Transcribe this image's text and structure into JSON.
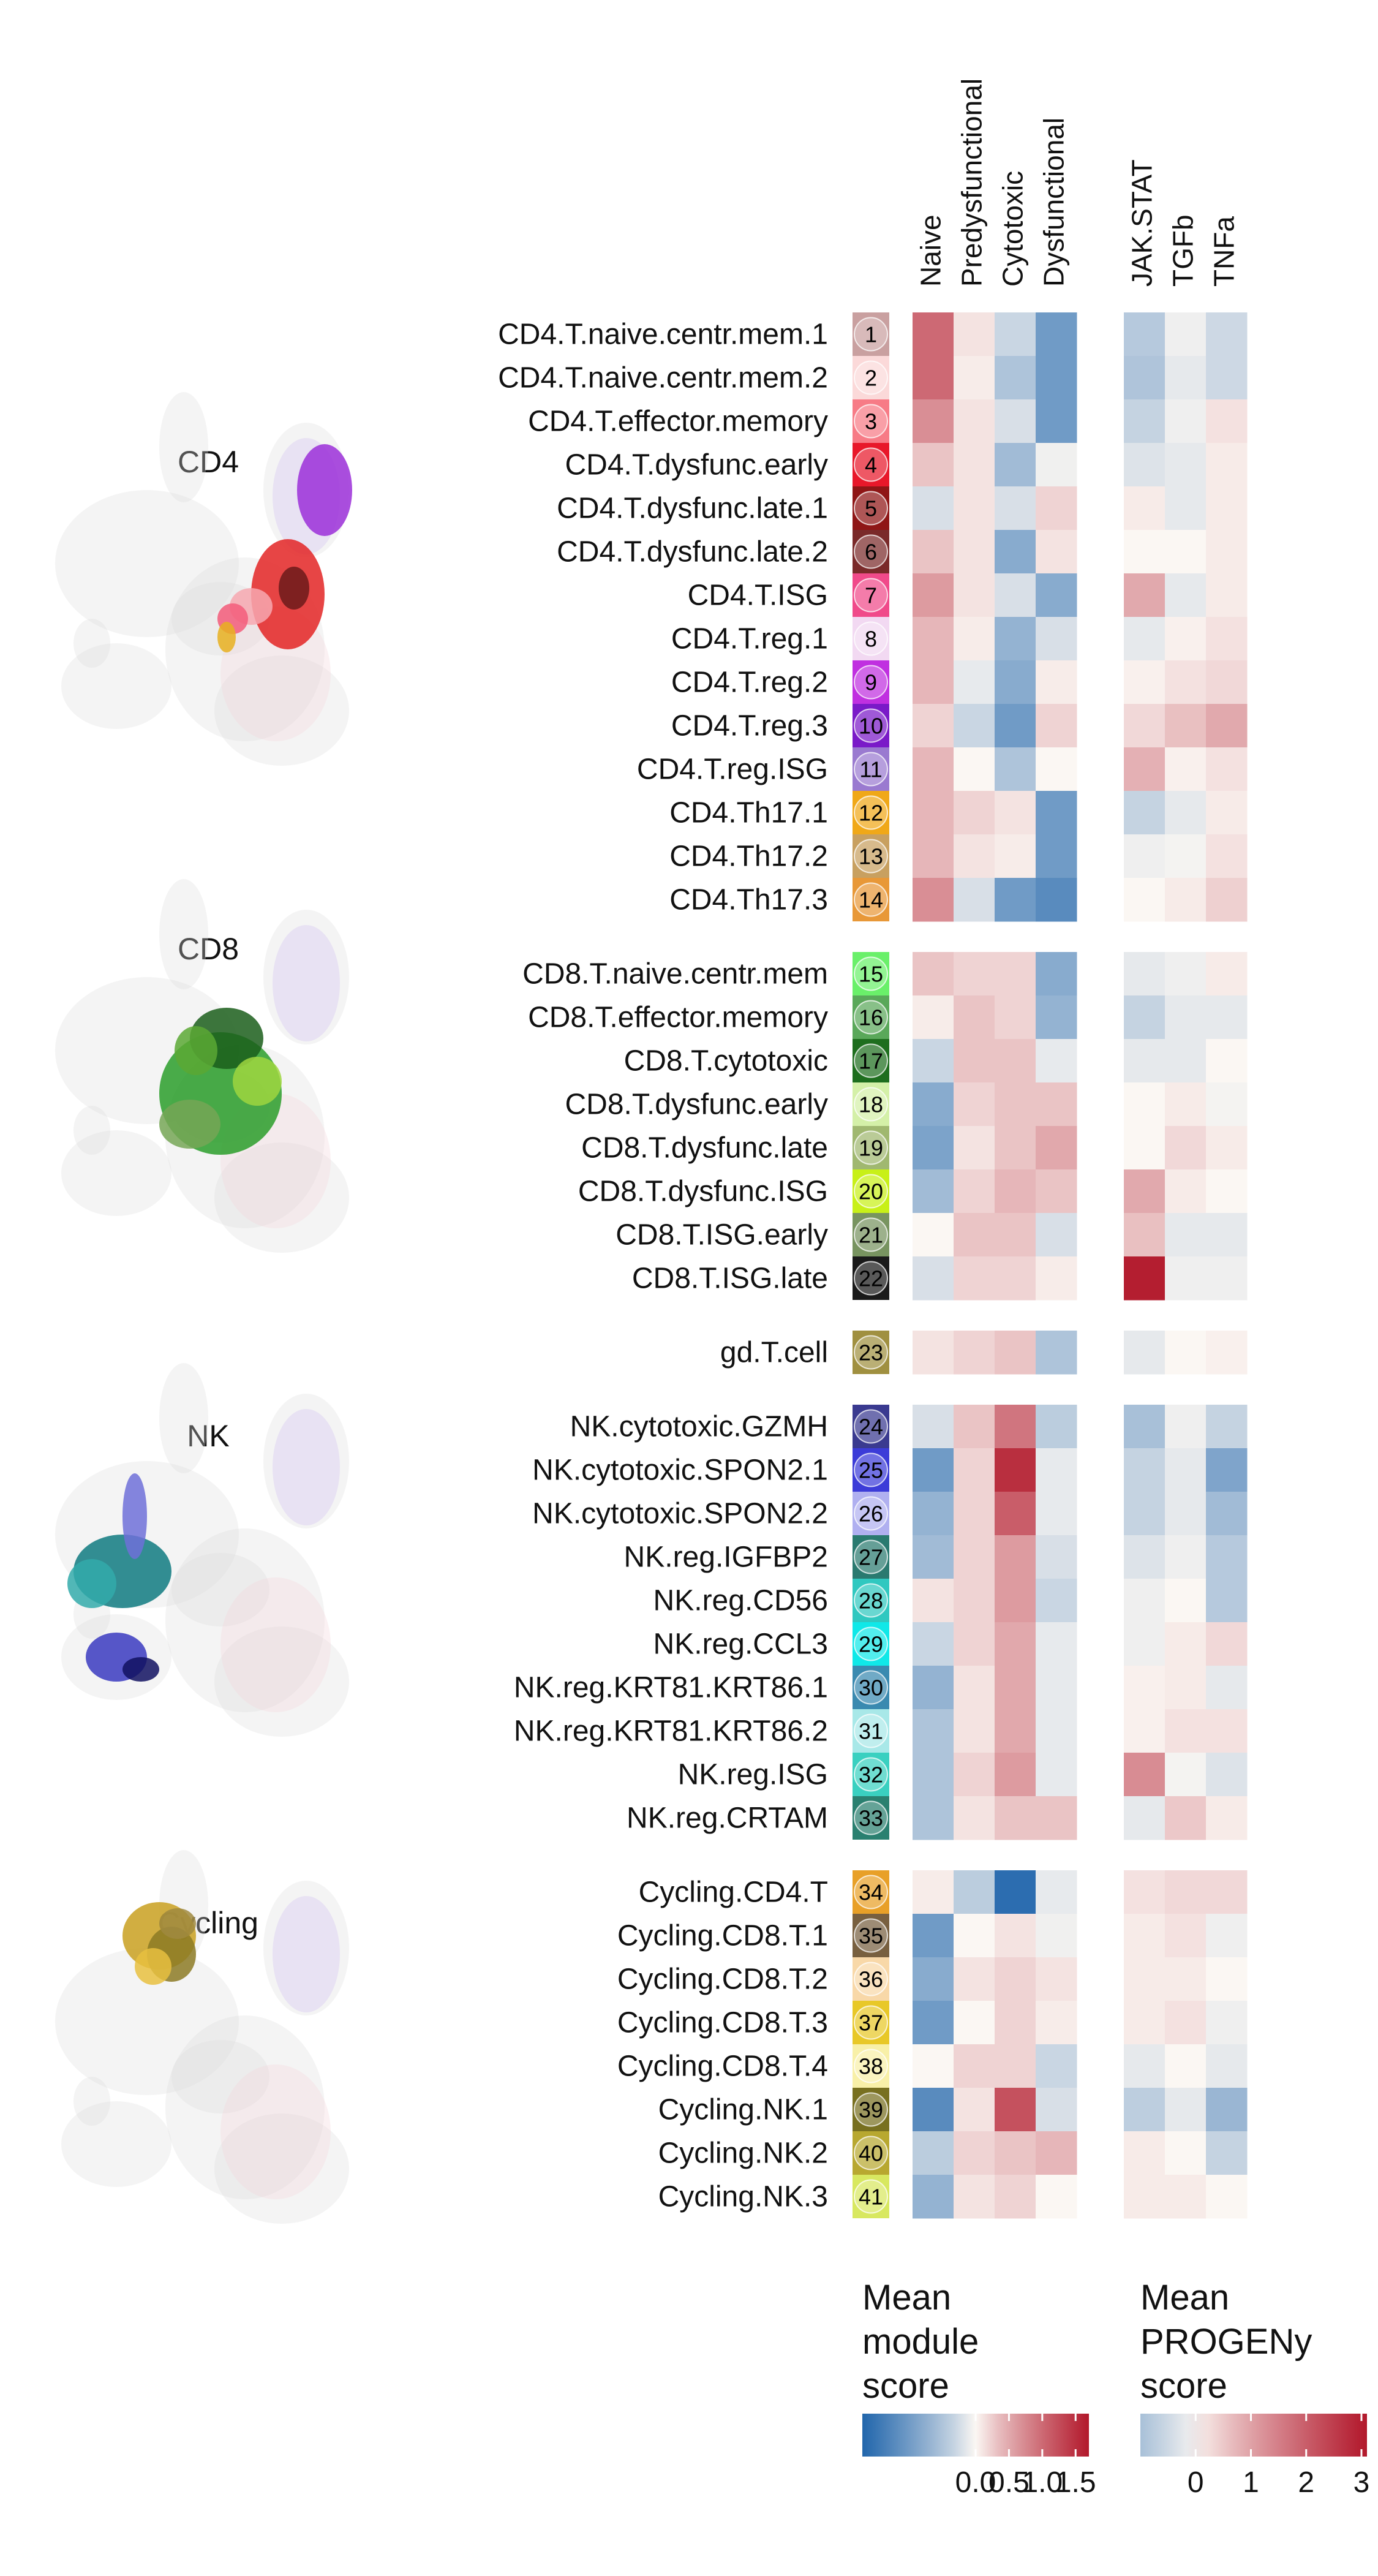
{
  "chart_data": {
    "type": "heatmap",
    "umap_panels": [
      {
        "label": "CD4",
        "colors": [
          "#9b2fd8",
          "#e32424",
          "#6b1a1a",
          "#f7a8b0",
          "#f35c7a",
          "#e8b020"
        ]
      },
      {
        "label": "CD8",
        "colors": [
          "#2a9e2a",
          "#1b5e1b",
          "#5aa834",
          "#9fd640",
          "#76a656"
        ]
      },
      {
        "label": "NK",
        "colors": [
          "#0f7a80",
          "#3a3ac0",
          "#101060",
          "#33aaaa",
          "#6f70d8"
        ]
      },
      {
        "label": "Cycling",
        "colors": [
          "#c9a020",
          "#8c7a24",
          "#e8c040",
          "#a08a40"
        ]
      }
    ],
    "module_columns": [
      "Naive",
      "Predysfunctional",
      "Cytotoxic",
      "Dysfunctional"
    ],
    "progeny_columns": [
      "JAK.STAT",
      "TGFb",
      "TNFa"
    ],
    "groups": [
      {
        "name": "CD4",
        "rows": [
          {
            "num": "1",
            "label": "CD4.T.naive.centr.mem.1",
            "color": "#c9a0a0",
            "module": [
              1.0,
              0.1,
              -0.3,
              -1.0
            ],
            "progeny": [
              -0.8,
              -0.1,
              -0.5
            ]
          },
          {
            "num": "2",
            "label": "CD4.T.naive.centr.mem.2",
            "color": "#fbd9d9",
            "module": [
              1.0,
              0.05,
              -0.5,
              -1.0
            ],
            "progeny": [
              -0.9,
              -0.2,
              -0.5
            ]
          },
          {
            "num": "3",
            "label": "CD4.T.effector.memory",
            "color": "#f77b86",
            "module": [
              0.7,
              0.1,
              -0.2,
              -1.0
            ],
            "progeny": [
              -0.6,
              -0.1,
              0.2
            ]
          },
          {
            "num": "4",
            "label": "CD4.T.dysfunc.early",
            "color": "#e8182a",
            "module": [
              0.3,
              0.1,
              -0.6,
              -0.05
            ],
            "progeny": [
              -0.3,
              -0.2,
              0.1
            ]
          },
          {
            "num": "5",
            "label": "CD4.T.dysfunc.late.1",
            "color": "#8f1616",
            "module": [
              -0.2,
              0.1,
              -0.2,
              0.2
            ],
            "progeny": [
              0.1,
              -0.2,
              0.1
            ]
          },
          {
            "num": "6",
            "label": "CD4.T.dysfunc.late.2",
            "color": "#7a2a2a",
            "module": [
              0.3,
              0.1,
              -0.8,
              0.1
            ],
            "progeny": [
              0.0,
              0.0,
              0.1
            ]
          },
          {
            "num": "7",
            "label": "CD4.T.ISG",
            "color": "#f04a8a",
            "module": [
              0.6,
              0.1,
              -0.2,
              -0.8
            ],
            "progeny": [
              0.9,
              -0.2,
              0.1
            ]
          },
          {
            "num": "8",
            "label": "CD4.T.reg.1",
            "color": "#f2d9f2",
            "module": [
              0.4,
              0.05,
              -0.7,
              -0.2
            ],
            "progeny": [
              -0.2,
              0.05,
              0.2
            ]
          },
          {
            "num": "9",
            "label": "CD4.T.reg.2",
            "color": "#c030e0",
            "module": [
              0.4,
              -0.1,
              -0.8,
              0.05
            ],
            "progeny": [
              0.05,
              0.2,
              0.3
            ]
          },
          {
            "num": "10",
            "label": "CD4.T.reg.3",
            "color": "#7a1ac8",
            "module": [
              0.2,
              -0.3,
              -1.0,
              0.2
            ],
            "progeny": [
              0.3,
              0.6,
              0.9
            ]
          },
          {
            "num": "11",
            "label": "CD4.T.reg.ISG",
            "color": "#9a7ad0",
            "module": [
              0.4,
              0.0,
              -0.5,
              0.0
            ],
            "progeny": [
              0.8,
              0.05,
              0.2
            ]
          },
          {
            "num": "12",
            "label": "CD4.Th17.1",
            "color": "#f0a818",
            "module": [
              0.4,
              0.2,
              0.1,
              -1.0
            ],
            "progeny": [
              -0.6,
              -0.2,
              0.1
            ]
          },
          {
            "num": "13",
            "label": "CD4.Th17.2",
            "color": "#c8a060",
            "module": [
              0.4,
              0.1,
              0.05,
              -1.0
            ],
            "progeny": [
              -0.1,
              -0.05,
              0.2
            ]
          },
          {
            "num": "14",
            "label": "CD4.Th17.3",
            "color": "#e89838",
            "module": [
              0.7,
              -0.2,
              -1.0,
              -1.2
            ],
            "progeny": [
              0.0,
              0.1,
              0.4
            ]
          }
        ]
      },
      {
        "name": "CD8",
        "rows": [
          {
            "num": "15",
            "label": "CD8.T.naive.centr.mem",
            "color": "#6af06a",
            "module": [
              0.3,
              0.2,
              0.2,
              -0.8
            ],
            "progeny": [
              -0.2,
              -0.1,
              0.1
            ]
          },
          {
            "num": "16",
            "label": "CD8.T.effector.memory",
            "color": "#5aa85a",
            "module": [
              0.05,
              0.3,
              0.2,
              -0.7
            ],
            "progeny": [
              -0.6,
              -0.2,
              -0.2
            ]
          },
          {
            "num": "17",
            "label": "CD8.T.cytotoxic",
            "color": "#1e6e1e",
            "module": [
              -0.3,
              0.3,
              0.3,
              -0.1
            ],
            "progeny": [
              -0.2,
              -0.2,
              0.0
            ]
          },
          {
            "num": "18",
            "label": "CD8.T.dysfunc.early",
            "color": "#d4f0a8",
            "module": [
              -0.8,
              0.2,
              0.3,
              0.3
            ],
            "progeny": [
              0.0,
              0.1,
              -0.05
            ]
          },
          {
            "num": "19",
            "label": "CD8.T.dysfunc.late",
            "color": "#a0b870",
            "module": [
              -0.9,
              0.1,
              0.3,
              0.5
            ],
            "progeny": [
              0.0,
              0.3,
              0.1
            ]
          },
          {
            "num": "20",
            "label": "CD8.T.dysfunc.ISG",
            "color": "#c8f018",
            "module": [
              -0.6,
              0.2,
              0.4,
              0.3
            ],
            "progeny": [
              0.9,
              0.1,
              0.0
            ]
          },
          {
            "num": "21",
            "label": "CD8.T.ISG.early",
            "color": "#789460",
            "module": [
              0.0,
              0.3,
              0.3,
              -0.2
            ],
            "progeny": [
              0.6,
              -0.2,
              -0.2
            ]
          },
          {
            "num": "22",
            "label": "CD8.T.ISG.late",
            "color": "#1a1a1a",
            "module": [
              -0.2,
              0.2,
              0.2,
              0.05
            ],
            "progeny": [
              3.0,
              -0.1,
              -0.1
            ]
          }
        ]
      },
      {
        "name": "gd",
        "rows": [
          {
            "num": "23",
            "label": "gd.T.cell",
            "color": "#a09040",
            "module": [
              0.1,
              0.2,
              0.3,
              -0.5
            ],
            "progeny": [
              -0.2,
              0.0,
              0.05
            ]
          }
        ]
      },
      {
        "name": "NK",
        "rows": [
          {
            "num": "24",
            "label": "NK.cytotoxic.GZMH",
            "color": "#3a3a90",
            "module": [
              -0.2,
              0.3,
              0.9,
              -0.4
            ],
            "progeny": [
              -1.0,
              -0.1,
              -0.6
            ]
          },
          {
            "num": "25",
            "label": "NK.cytotoxic.SPON2.1",
            "color": "#3c3cd8",
            "module": [
              -1.0,
              0.2,
              1.5,
              -0.1
            ],
            "progeny": [
              -0.6,
              -0.2,
              -1.6
            ]
          },
          {
            "num": "26",
            "label": "NK.cytotoxic.SPON2.2",
            "color": "#b0b0f0",
            "module": [
              -0.7,
              0.2,
              1.1,
              -0.1
            ],
            "progeny": [
              -0.6,
              -0.2,
              -1.1
            ]
          },
          {
            "num": "27",
            "label": "NK.reg.IGFBP2",
            "color": "#2a7a70",
            "module": [
              -0.6,
              0.2,
              0.6,
              -0.2
            ],
            "progeny": [
              -0.3,
              -0.1,
              -0.8
            ]
          },
          {
            "num": "28",
            "label": "NK.reg.CD56",
            "color": "#30c8c0",
            "module": [
              0.1,
              0.2,
              0.6,
              -0.3
            ],
            "progeny": [
              -0.1,
              0.0,
              -0.8
            ]
          },
          {
            "num": "29",
            "label": "NK.reg.CCL3",
            "color": "#10e8e8",
            "module": [
              -0.3,
              0.2,
              0.5,
              -0.1
            ],
            "progeny": [
              -0.1,
              0.1,
              0.3
            ]
          },
          {
            "num": "30",
            "label": "NK.reg.KRT81.KRT86.1",
            "color": "#3a8ab0",
            "module": [
              -0.7,
              0.1,
              0.5,
              -0.1
            ],
            "progeny": [
              0.05,
              0.1,
              -0.2
            ]
          },
          {
            "num": "31",
            "label": "NK.reg.KRT81.KRT86.2",
            "color": "#a8e8e8",
            "module": [
              -0.5,
              0.1,
              0.5,
              -0.1
            ],
            "progeny": [
              0.05,
              0.2,
              0.2
            ]
          },
          {
            "num": "32",
            "label": "NK.reg.ISG",
            "color": "#3ad0c0",
            "module": [
              -0.5,
              0.2,
              0.6,
              -0.1
            ],
            "progeny": [
              1.3,
              -0.05,
              -0.3
            ]
          },
          {
            "num": "33",
            "label": "NK.reg.CRTAM",
            "color": "#2a8070",
            "module": [
              -0.5,
              0.1,
              0.3,
              0.3
            ],
            "progeny": [
              -0.2,
              0.5,
              0.1
            ]
          }
        ]
      },
      {
        "name": "Cycling",
        "rows": [
          {
            "num": "34",
            "label": "Cycling.CD4.T",
            "color": "#e8a028",
            "module": [
              0.05,
              -0.4,
              -1.6,
              -0.1
            ],
            "progeny": [
              0.2,
              0.3,
              0.3
            ]
          },
          {
            "num": "35",
            "label": "Cycling.CD8.T.1",
            "color": "#786040",
            "module": [
              -1.0,
              0.0,
              0.1,
              -0.05
            ],
            "progeny": [
              0.1,
              0.2,
              -0.1
            ]
          },
          {
            "num": "36",
            "label": "Cycling.CD8.T.2",
            "color": "#f8d8a8",
            "module": [
              -0.8,
              0.1,
              0.2,
              0.1
            ],
            "progeny": [
              0.1,
              0.1,
              0.0
            ]
          },
          {
            "num": "37",
            "label": "Cycling.CD8.T.3",
            "color": "#e8c828",
            "module": [
              -1.0,
              0.0,
              0.2,
              0.05
            ],
            "progeny": [
              0.1,
              0.2,
              -0.1
            ]
          },
          {
            "num": "38",
            "label": "Cycling.CD8.T.4",
            "color": "#f8f0a8",
            "module": [
              0.0,
              0.2,
              0.2,
              -0.3
            ],
            "progeny": [
              -0.2,
              0.0,
              -0.2
            ]
          },
          {
            "num": "39",
            "label": "Cycling.NK.1",
            "color": "#787020",
            "module": [
              -1.2,
              0.1,
              1.2,
              -0.2
            ],
            "progeny": [
              -0.7,
              -0.2,
              -1.2
            ]
          },
          {
            "num": "40",
            "label": "Cycling.NK.2",
            "color": "#b8a830",
            "module": [
              -0.4,
              0.2,
              0.3,
              0.4
            ],
            "progeny": [
              0.1,
              0.0,
              -0.6
            ]
          },
          {
            "num": "41",
            "label": "Cycling.NK.3",
            "color": "#d8e860",
            "module": [
              -0.7,
              0.1,
              0.2,
              0.0
            ],
            "progeny": [
              0.1,
              0.1,
              0.0
            ]
          }
        ]
      }
    ],
    "legends": [
      {
        "title_lines": [
          "Mean",
          "module",
          "score"
        ],
        "min": -1.7,
        "max": 1.7,
        "ticks": [
          "0.0",
          "0.5",
          "1.0",
          "1.5"
        ],
        "tick_values": [
          0.0,
          0.5,
          1.0,
          1.5
        ]
      },
      {
        "title_lines": [
          "Mean",
          "PROGENy",
          "score"
        ],
        "min": -1.0,
        "max": 3.1,
        "ticks": [
          "0",
          "1",
          "2",
          "3"
        ],
        "tick_values": [
          0,
          1,
          2,
          3
        ]
      }
    ],
    "color_scale": {
      "negative": "#2166ac",
      "mid": "#fbf7f3",
      "positive": "#b2182b"
    }
  }
}
